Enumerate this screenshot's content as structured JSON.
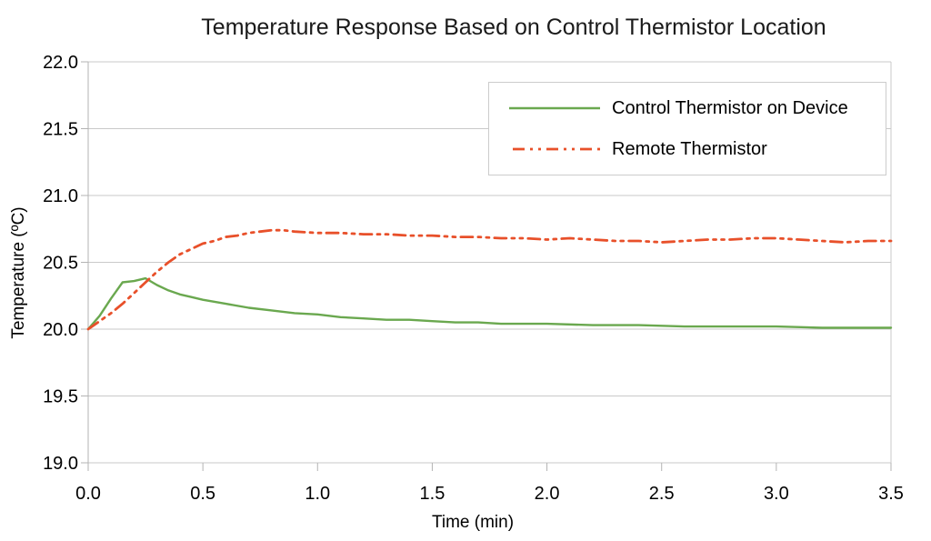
{
  "colors": {
    "background": "#ffffff",
    "gridline": "#c9c9c9",
    "axis": "#b3b3b3",
    "text": "#000000",
    "legend_border": "#cccccc",
    "series_green": "#6aa84f",
    "series_red": "#e8502a"
  },
  "chart_data": {
    "type": "line",
    "title": "Temperature Response Based on Control Thermistor Location",
    "xlabel": "Time (min)",
    "ylabel": "Temperature (ºC)",
    "xlim": [
      0,
      3.5
    ],
    "ylim": [
      19.0,
      22.0
    ],
    "xticks": [
      "0.0",
      "0.5",
      "1.0",
      "1.5",
      "2.0",
      "2.5",
      "3.0",
      "3.5"
    ],
    "yticks": [
      "19.0",
      "19.5",
      "20.0",
      "20.5",
      "21.0",
      "21.5",
      "22.0"
    ],
    "grid": "horizontal-only",
    "legend_position": "inside-top-right",
    "series": [
      {
        "name": "Control Thermistor on Device",
        "color": "#6aa84f",
        "line_style": "solid",
        "points": [
          [
            0.0,
            20.0
          ],
          [
            0.05,
            20.1
          ],
          [
            0.1,
            20.23
          ],
          [
            0.15,
            20.35
          ],
          [
            0.2,
            20.36
          ],
          [
            0.25,
            20.38
          ],
          [
            0.3,
            20.33
          ],
          [
            0.35,
            20.29
          ],
          [
            0.4,
            20.26
          ],
          [
            0.45,
            20.24
          ],
          [
            0.5,
            20.22
          ],
          [
            0.6,
            20.19
          ],
          [
            0.7,
            20.16
          ],
          [
            0.8,
            20.14
          ],
          [
            0.9,
            20.12
          ],
          [
            1.0,
            20.11
          ],
          [
            1.1,
            20.09
          ],
          [
            1.2,
            20.08
          ],
          [
            1.3,
            20.07
          ],
          [
            1.4,
            20.07
          ],
          [
            1.5,
            20.06
          ],
          [
            1.6,
            20.05
          ],
          [
            1.7,
            20.05
          ],
          [
            1.8,
            20.04
          ],
          [
            1.9,
            20.04
          ],
          [
            2.0,
            20.04
          ],
          [
            2.2,
            20.03
          ],
          [
            2.4,
            20.03
          ],
          [
            2.6,
            20.02
          ],
          [
            2.8,
            20.02
          ],
          [
            3.0,
            20.02
          ],
          [
            3.2,
            20.01
          ],
          [
            3.4,
            20.01
          ],
          [
            3.5,
            20.01
          ]
        ]
      },
      {
        "name": "Remote Thermistor",
        "color": "#e8502a",
        "line_style": "dash-dot-dot",
        "points": [
          [
            0.0,
            20.0
          ],
          [
            0.05,
            20.06
          ],
          [
            0.1,
            20.12
          ],
          [
            0.15,
            20.19
          ],
          [
            0.2,
            20.27
          ],
          [
            0.25,
            20.35
          ],
          [
            0.3,
            20.43
          ],
          [
            0.35,
            20.5
          ],
          [
            0.4,
            20.56
          ],
          [
            0.45,
            20.6
          ],
          [
            0.5,
            20.64
          ],
          [
            0.55,
            20.66
          ],
          [
            0.6,
            20.69
          ],
          [
            0.65,
            20.7
          ],
          [
            0.7,
            20.72
          ],
          [
            0.75,
            20.73
          ],
          [
            0.8,
            20.74
          ],
          [
            0.85,
            20.74
          ],
          [
            0.9,
            20.73
          ],
          [
            1.0,
            20.72
          ],
          [
            1.1,
            20.72
          ],
          [
            1.2,
            20.71
          ],
          [
            1.3,
            20.71
          ],
          [
            1.4,
            20.7
          ],
          [
            1.5,
            20.7
          ],
          [
            1.6,
            20.69
          ],
          [
            1.7,
            20.69
          ],
          [
            1.8,
            20.68
          ],
          [
            1.9,
            20.68
          ],
          [
            2.0,
            20.67
          ],
          [
            2.1,
            20.68
          ],
          [
            2.2,
            20.67
          ],
          [
            2.3,
            20.66
          ],
          [
            2.4,
            20.66
          ],
          [
            2.5,
            20.65
          ],
          [
            2.6,
            20.66
          ],
          [
            2.7,
            20.67
          ],
          [
            2.8,
            20.67
          ],
          [
            2.9,
            20.68
          ],
          [
            3.0,
            20.68
          ],
          [
            3.1,
            20.67
          ],
          [
            3.2,
            20.66
          ],
          [
            3.3,
            20.65
          ],
          [
            3.4,
            20.66
          ],
          [
            3.5,
            20.66
          ]
        ]
      }
    ]
  }
}
